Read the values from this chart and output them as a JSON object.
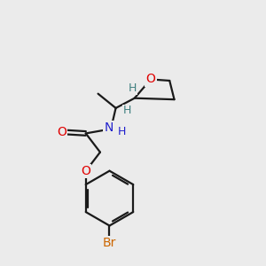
{
  "background_color": "#ebebeb",
  "bond_color": "#1a1a1a",
  "o_color": "#e00000",
  "n_color": "#2020cc",
  "br_color": "#cc6600",
  "stereo_color": "#408080",
  "figsize": [
    3.0,
    3.0
  ],
  "dpi": 100,
  "xlim": [
    0,
    10
  ],
  "ylim": [
    0,
    10
  ]
}
